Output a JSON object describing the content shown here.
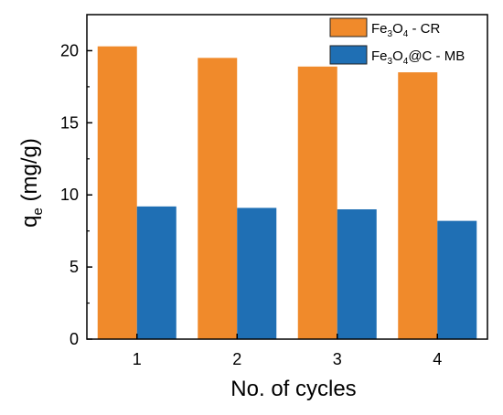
{
  "chart_data": {
    "type": "bar",
    "categories": [
      "1",
      "2",
      "3",
      "4"
    ],
    "series": [
      {
        "name": "Fe3O4 - CR",
        "legend_label": {
          "a": "Fe",
          "b": "3",
          "c": "O",
          "d": "4",
          "e": " - CR"
        },
        "color": "#F08A2B",
        "values": [
          20.3,
          19.5,
          18.9,
          18.5
        ]
      },
      {
        "name": "Fe3O4@C - MB",
        "legend_label": {
          "a": "Fe",
          "b": "3",
          "c": "O",
          "d": "4",
          "e": "@C - MB"
        },
        "color": "#1F6FB4",
        "values": [
          9.2,
          9.1,
          9.0,
          8.2
        ]
      }
    ],
    "xlabel": "No. of cycles",
    "ylabel": {
      "main": "q",
      "sub": "e",
      "unit": " (mg/g)"
    },
    "ylim": [
      0,
      22.5
    ],
    "yticks": [
      "0",
      "5",
      "10",
      "15",
      "20"
    ],
    "grid": false,
    "legend_position": "top-right"
  }
}
